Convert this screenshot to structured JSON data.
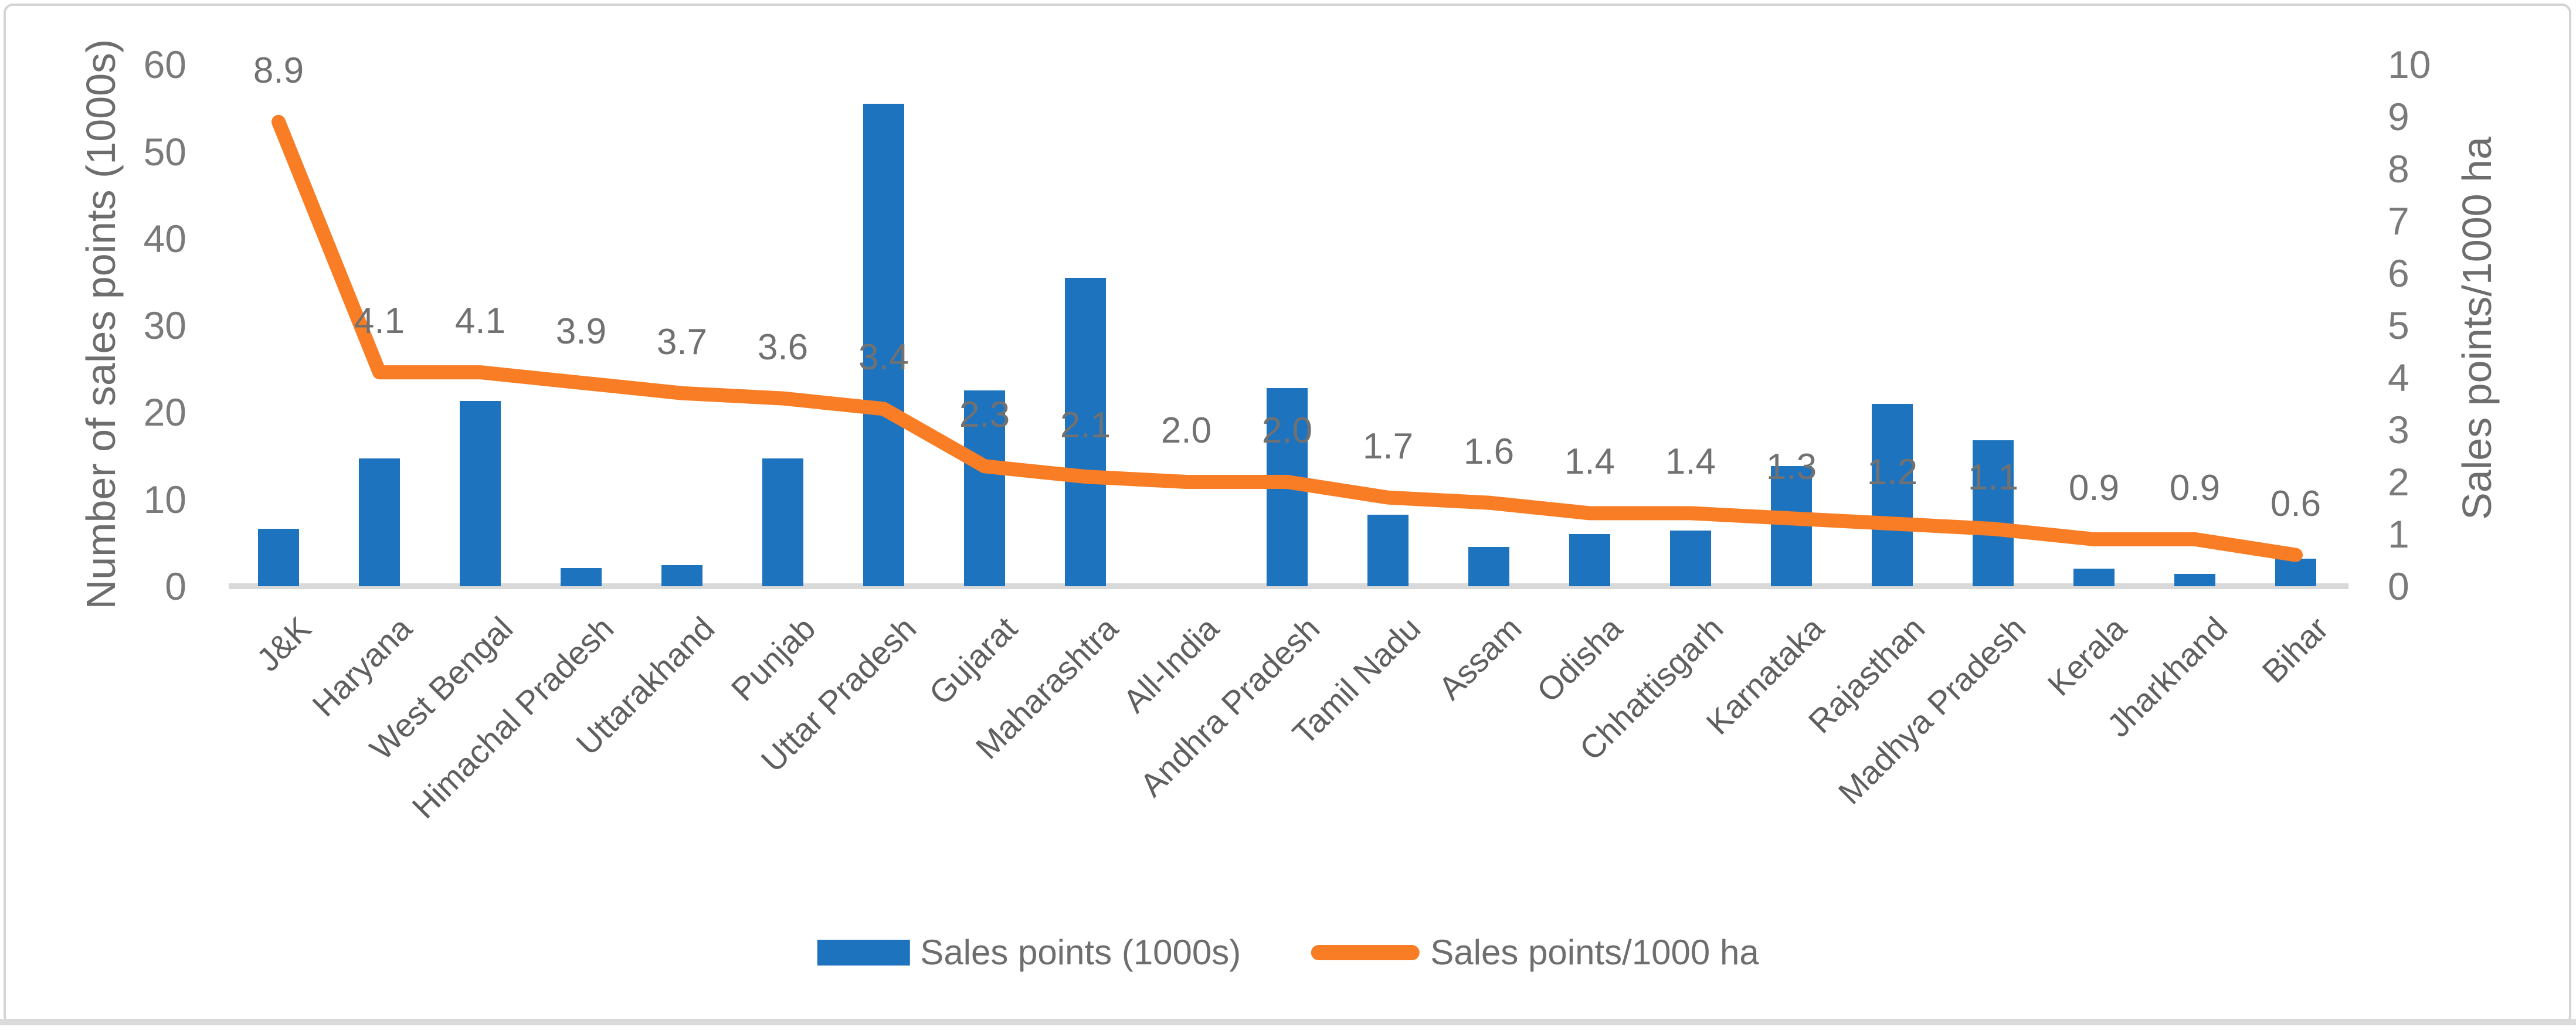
{
  "chart_data": {
    "type": "bar+line",
    "title": "",
    "categories": [
      "J&K",
      "Haryana",
      "West Bengal",
      "Himachal Pradesh",
      "Uttarakhand",
      "Punjab",
      "Uttar Pradesh",
      "Gujarat",
      "Maharashtra",
      "All-India",
      "Andhra Pradesh",
      "Tamil Nadu",
      "Assam",
      "Odisha",
      "Chhattisgarh",
      "Karnataka",
      "Rajasthan",
      "Madhya Pradesh",
      "Kerala",
      "Jharkhand",
      "Bihar"
    ],
    "series": [
      {
        "name": "Sales points (1000s)",
        "type": "bar",
        "axis": "left",
        "color": "#1E73BE",
        "values": [
          6.6,
          14.7,
          21.3,
          2.1,
          2.4,
          14.7,
          55.5,
          22.5,
          35.5,
          null,
          22.8,
          8.2,
          4.5,
          6.0,
          6.4,
          13.8,
          21.0,
          16.8,
          2.0,
          1.4,
          3.2
        ]
      },
      {
        "name": "Sales points/1000 ha",
        "type": "line",
        "axis": "right",
        "color": "#F87D25",
        "values": [
          8.9,
          4.1,
          4.1,
          3.9,
          3.7,
          3.6,
          3.4,
          2.3,
          2.1,
          2.0,
          2.0,
          1.7,
          1.6,
          1.4,
          1.4,
          1.3,
          1.2,
          1.1,
          0.9,
          0.9,
          0.6
        ],
        "data_labels": [
          "8.9",
          "4.1",
          "4.1",
          "3.9",
          "3.7",
          "3.6",
          "3.4",
          "2.3",
          "2.1",
          "2.0",
          "2.0",
          "1.7",
          "1.6",
          "1.4",
          "1.4",
          "1.3",
          "1.2",
          "1.1",
          "0.9",
          "0.9",
          "0.6"
        ]
      }
    ],
    "left_axis": {
      "title": "Number of sales points (1000s)",
      "min": 0,
      "max": 60,
      "step": 10,
      "ticks": [
        "0",
        "10",
        "20",
        "30",
        "40",
        "50",
        "60"
      ]
    },
    "right_axis": {
      "title": "Sales points/1000 ha",
      "min": 0,
      "max": 10,
      "step": 1,
      "ticks": [
        "0",
        "1",
        "2",
        "3",
        "4",
        "5",
        "6",
        "7",
        "8",
        "9",
        "10"
      ]
    },
    "legend": [
      "Sales points (1000s)",
      "Sales points/1000 ha"
    ],
    "legend_position": "bottom",
    "grid": false
  }
}
